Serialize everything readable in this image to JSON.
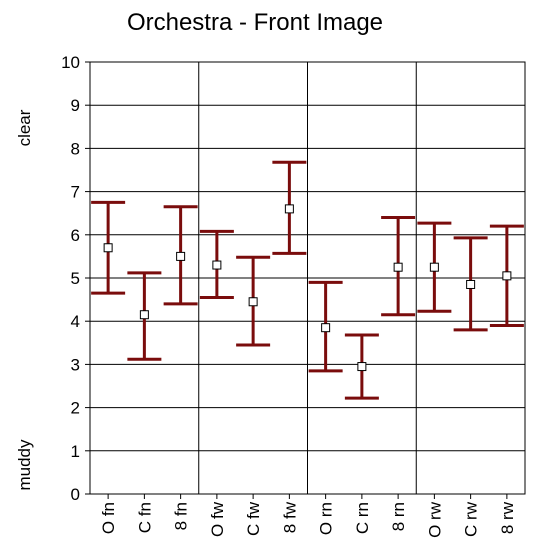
{
  "chart_data": {
    "type": "errorbar",
    "title": "Orchestra - Front Image",
    "xlabel": "",
    "ylabel": "",
    "y_top_label": "clear",
    "y_bottom_label": "muddy",
    "ylim": [
      0,
      10
    ],
    "yticks": [
      "0",
      "1",
      "2",
      "3",
      "4",
      "5",
      "6",
      "7",
      "8",
      "9",
      "10"
    ],
    "categories": [
      "O fn",
      "C fn",
      "8 fn",
      "O fw",
      "C fw",
      "8 fw",
      "O rn",
      "C rn",
      "8 rn",
      "O rw",
      "C rw",
      "8 rw"
    ],
    "groups": 4,
    "grid": true,
    "series": [
      {
        "mean": [
          5.7,
          4.15,
          5.5,
          5.3,
          4.45,
          6.6,
          3.85,
          2.95,
          5.25,
          5.25,
          4.85,
          5.05
        ],
        "lower": [
          4.65,
          3.12,
          4.4,
          4.55,
          3.45,
          5.57,
          2.85,
          2.22,
          4.15,
          4.23,
          3.8,
          3.9
        ],
        "upper": [
          6.75,
          5.12,
          6.65,
          6.08,
          5.48,
          7.68,
          4.9,
          3.68,
          6.4,
          6.27,
          5.93,
          6.2
        ]
      }
    ],
    "colors": {
      "bar": "#7a0c0c",
      "marker": "#000000",
      "grid": "#000000",
      "background": "#ffffff"
    }
  }
}
